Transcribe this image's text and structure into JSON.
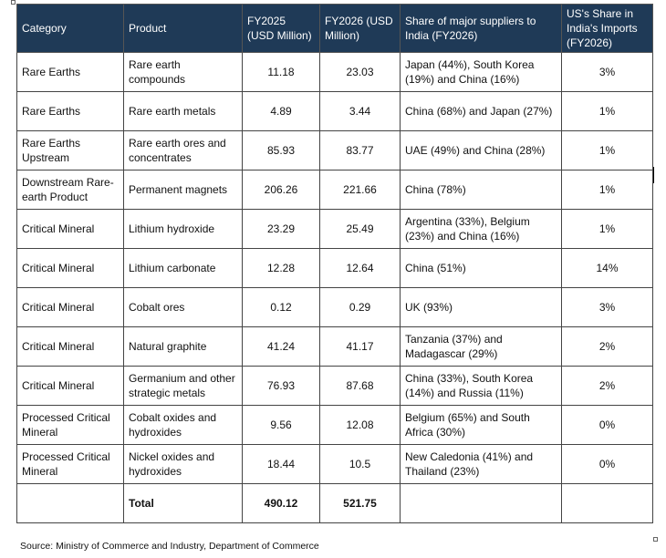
{
  "table": {
    "headers": [
      "Category",
      "Product",
      "FY2025 (USD Million)",
      "FY2026 (USD Million)",
      "Share of major suppliers to India (FY2026)",
      "US's Share in India's Imports (FY2026)"
    ],
    "rows": [
      {
        "category": "Rare Earths",
        "product": "Rare earth compounds",
        "fy2025": "11.18",
        "fy2026": "23.03",
        "suppliers": "Japan (44%), South Korea (19%) and China (16%)",
        "us_share": "3%"
      },
      {
        "category": "Rare Earths",
        "product": "Rare earth metals",
        "fy2025": "4.89",
        "fy2026": "3.44",
        "suppliers": "China (68%) and Japan (27%)",
        "us_share": "1%"
      },
      {
        "category": "Rare Earths Upstream",
        "product": "Rare earth ores and concentrates",
        "fy2025": "85.93",
        "fy2026": "83.77",
        "suppliers": "UAE (49%) and China (28%)",
        "us_share": "1%"
      },
      {
        "category": "Downstream Rare-earth Product",
        "product": "Permanent magnets",
        "fy2025": "206.26",
        "fy2026": "221.66",
        "suppliers": "China (78%)",
        "us_share": "1%"
      },
      {
        "category": "Critical Mineral",
        "product": "Lithium hydroxide",
        "fy2025": "23.29",
        "fy2026": "25.49",
        "suppliers": "Argentina (33%), Belgium (23%) and China (16%)",
        "us_share": "1%"
      },
      {
        "category": "Critical Mineral",
        "product": "Lithium carbonate",
        "fy2025": "12.28",
        "fy2026": "12.64",
        "suppliers": "China (51%)",
        "us_share": "14%"
      },
      {
        "category": "Critical Mineral",
        "product": "Cobalt ores",
        "fy2025": "0.12",
        "fy2026": "0.29",
        "suppliers": "UK (93%)",
        "us_share": "3%"
      },
      {
        "category": "Critical Mineral",
        "product": "Natural graphite",
        "fy2025": "41.24",
        "fy2026": "41.17",
        "suppliers": "Tanzania (37%) and Madagascar (29%)",
        "us_share": "2%"
      },
      {
        "category": "Critical Mineral",
        "product": "Germanium and other strategic metals",
        "fy2025": "76.93",
        "fy2026": "87.68",
        "suppliers": "China (33%), South Korea (14%) and Russia (11%)",
        "us_share": "2%"
      },
      {
        "category": "Processed Critical Mineral",
        "product": "Cobalt oxides and hydroxides",
        "fy2025": "9.56",
        "fy2026": "12.08",
        "suppliers": "Belgium (65%) and South Africa (30%)",
        "us_share": "0%"
      },
      {
        "category": "Processed Critical Mineral",
        "product": "Nickel oxides and hydroxides",
        "fy2025": "18.44",
        "fy2026": "10.5",
        "suppliers": "New Caledonia (41%) and Thailand (23%)",
        "us_share": "0%"
      }
    ],
    "total": {
      "label": "Total",
      "fy2025": "490.12",
      "fy2026": "521.75"
    }
  },
  "source": "Source: Ministry of Commerce and Industry,  Department of Commerce"
}
